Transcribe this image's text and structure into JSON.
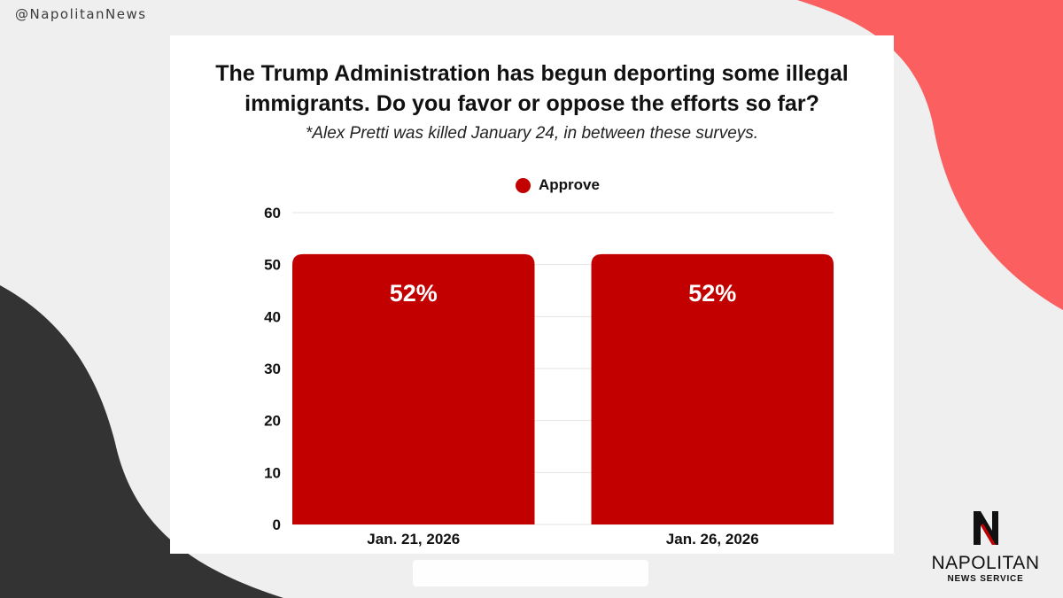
{
  "handle": "@NapolitanNews",
  "colors": {
    "bar": "#c20000",
    "accent_coral": "#fb5f5f",
    "dark_shape": "#333333",
    "background": "#efefef"
  },
  "logo": {
    "name": "NAPOLITAN",
    "sub": "NEWS SERVICE",
    "mark": "N"
  },
  "chart_data": {
    "type": "bar",
    "title": "The Trump Administration has begun deporting some illegal immigrants. Do you favor or oppose the efforts so far?",
    "subtitle": "*Alex Pretti was killed January 24, in between these surveys.",
    "categories": [
      "Jan. 21, 2026",
      "Jan. 26, 2026"
    ],
    "series": [
      {
        "name": "Approve",
        "values": [
          52,
          52
        ],
        "labels": [
          "52%",
          "52%"
        ]
      }
    ],
    "ylim": [
      0,
      60
    ],
    "yticks": [
      0,
      10,
      20,
      30,
      40,
      50,
      60
    ],
    "grid": true,
    "legend": "top-center",
    "xlabel": "",
    "ylabel": ""
  }
}
